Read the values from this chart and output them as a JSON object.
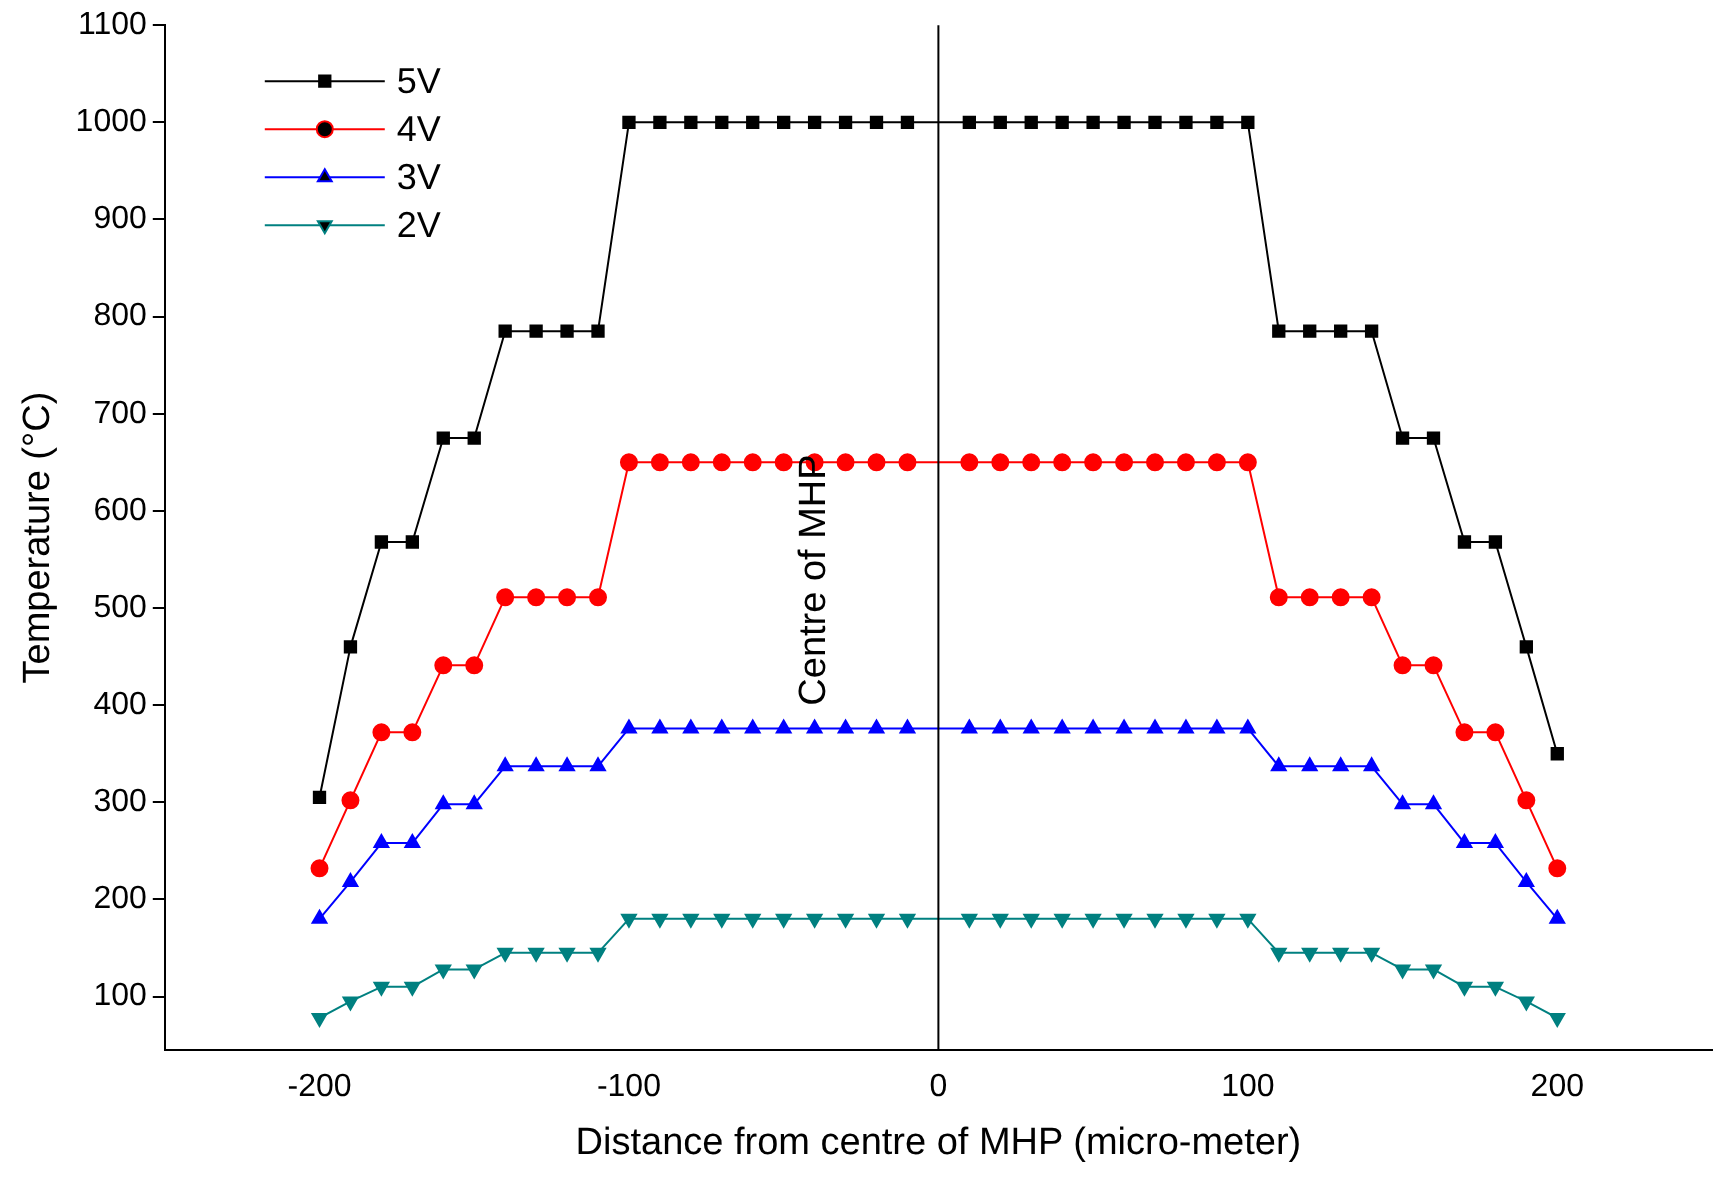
{
  "chart_data": {
    "type": "line",
    "xlabel": "Distance from centre of MHP (micro-meter)",
    "ylabel": "Temperature (°C)",
    "x": [
      -200,
      -190,
      -180,
      -170,
      -160,
      -150,
      -140,
      -130,
      -120,
      -110,
      -100,
      -90,
      -80,
      -70,
      -60,
      -50,
      -40,
      -30,
      -20,
      -10,
      10,
      20,
      30,
      40,
      50,
      60,
      70,
      80,
      90,
      100,
      110,
      120,
      130,
      140,
      150,
      160,
      170,
      180,
      190,
      200
    ],
    "series": [
      {
        "name": "5V",
        "color": "#000000",
        "marker": "square",
        "values": [
          305,
          460,
          568,
          568,
          675,
          675,
          785,
          785,
          785,
          785,
          1000,
          1000,
          1000,
          1000,
          1000,
          1000,
          1000,
          1000,
          1000,
          1000,
          1000,
          1000,
          1000,
          1000,
          1000,
          1000,
          1000,
          1000,
          1000,
          1000,
          785,
          785,
          785,
          785,
          675,
          675,
          568,
          568,
          460,
          350
        ]
      },
      {
        "name": "4V",
        "color": "#ff0000",
        "marker": "circle",
        "values": [
          232,
          302,
          372,
          372,
          441,
          441,
          511,
          511,
          511,
          511,
          650,
          650,
          650,
          650,
          650,
          650,
          650,
          650,
          650,
          650,
          650,
          650,
          650,
          650,
          650,
          650,
          650,
          650,
          650,
          650,
          511,
          511,
          511,
          511,
          441,
          441,
          372,
          372,
          302,
          232
        ]
      },
      {
        "name": "3V",
        "color": "#0000ff",
        "marker": "triangle",
        "values": [
          180,
          218,
          258,
          258,
          298,
          298,
          337,
          337,
          337,
          337,
          376,
          376,
          376,
          376,
          376,
          376,
          376,
          376,
          376,
          376,
          376,
          376,
          376,
          376,
          376,
          376,
          376,
          376,
          376,
          376,
          337,
          337,
          337,
          337,
          298,
          298,
          258,
          258,
          218,
          180
        ]
      },
      {
        "name": "2V",
        "color": "#008080",
        "marker": "triangle-down",
        "values": [
          78,
          95,
          110,
          110,
          128,
          128,
          145,
          145,
          145,
          145,
          180,
          180,
          180,
          180,
          180,
          180,
          180,
          180,
          180,
          180,
          180,
          180,
          180,
          180,
          180,
          180,
          180,
          180,
          180,
          180,
          145,
          145,
          145,
          145,
          128,
          128,
          110,
          110,
          95,
          78
        ]
      }
    ],
    "xlim": [
      -250,
      250
    ],
    "xticks": [
      -200,
      -100,
      0,
      100,
      200
    ],
    "ylim": [
      45,
      1100
    ],
    "yticks": [
      100,
      200,
      300,
      400,
      500,
      600,
      700,
      800,
      900,
      1000,
      1100
    ],
    "ref_lines": [
      {
        "axis": "x",
        "value": 0,
        "label": "Centre of MHP",
        "color": "#000000"
      }
    ],
    "grid": false,
    "legend": "top left",
    "line_style": "solid"
  }
}
